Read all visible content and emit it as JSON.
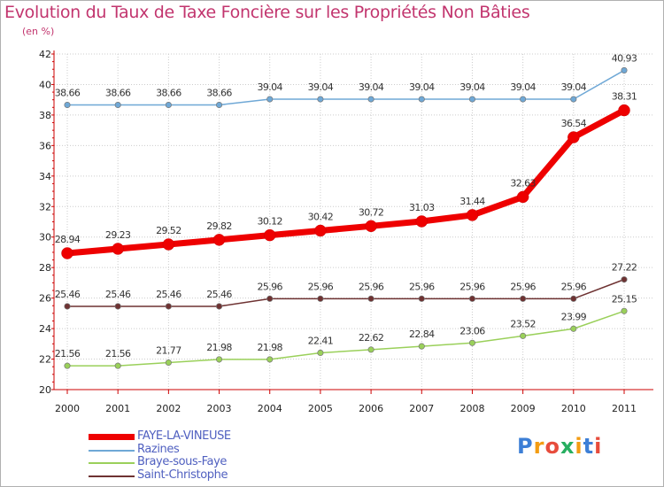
{
  "title": "Evolution du Taux de Taxe Foncière sur les Propriétés Non Bâties",
  "unit": "(en %)",
  "logo": "Proxiti",
  "colors": {
    "title": "#c2356e",
    "axis": "#cc0000",
    "grid": "#cccccc",
    "legend_text": "#5060c0"
  },
  "chart_data": {
    "type": "line",
    "title": "Evolution du Taux de Taxe Foncière sur les Propriétés Non Bâties",
    "ylabel": "(en %)",
    "xlabel": "",
    "ylim": [
      20,
      42
    ],
    "yticks": [
      "20",
      "22",
      "24",
      "26",
      "28",
      "30",
      "32",
      "34",
      "36",
      "38",
      "40",
      "42"
    ],
    "categories": [
      "2000",
      "2001",
      "2002",
      "2003",
      "2004",
      "2005",
      "2006",
      "2007",
      "2008",
      "2009",
      "2010",
      "2011"
    ],
    "grid": true,
    "legend_position": "bottom-left",
    "series": [
      {
        "name": "FAYE-LA-VINEUSE",
        "color": "#ee0000",
        "bold": true,
        "values": [
          28.94,
          29.23,
          29.52,
          29.82,
          30.12,
          30.42,
          30.72,
          31.03,
          31.44,
          32.63,
          36.54,
          38.31
        ],
        "labels": [
          "28.94",
          "29.23",
          "29.52",
          "29.82",
          "30.12",
          "30.42",
          "30.72",
          "31.03",
          "31.44",
          "32.63",
          "36.54",
          "38.31"
        ]
      },
      {
        "name": "Razines",
        "color": "#6fa8d6",
        "values": [
          38.66,
          38.66,
          38.66,
          38.66,
          39.04,
          39.04,
          39.04,
          39.04,
          39.04,
          39.04,
          39.04,
          40.93
        ],
        "labels": [
          "38.66",
          "38.66",
          "38.66",
          "38.66",
          "39.04",
          "39.04",
          "39.04",
          "39.04",
          "39.04",
          "39.04",
          "39.04",
          "40.93"
        ]
      },
      {
        "name": "Braye-sous-Faye",
        "color": "#9ad05a",
        "values": [
          21.56,
          21.56,
          21.77,
          21.98,
          21.98,
          22.41,
          22.62,
          22.84,
          23.06,
          23.52,
          23.99,
          25.15
        ],
        "labels": [
          "21.56",
          "21.56",
          "21.77",
          "21.98",
          "21.98",
          "22.41",
          "22.62",
          "22.84",
          "23.06",
          "23.52",
          "23.99",
          "25.15"
        ]
      },
      {
        "name": "Saint-Christophe",
        "color": "#6e3232",
        "values": [
          25.46,
          25.46,
          25.46,
          25.46,
          25.96,
          25.96,
          25.96,
          25.96,
          25.96,
          25.96,
          25.96,
          27.22
        ],
        "labels": [
          "25.46",
          "25.46",
          "25.46",
          "25.46",
          "25.96",
          "25.96",
          "25.96",
          "25.96",
          "25.96",
          "25.96",
          "25.96",
          "27.22"
        ]
      }
    ]
  }
}
